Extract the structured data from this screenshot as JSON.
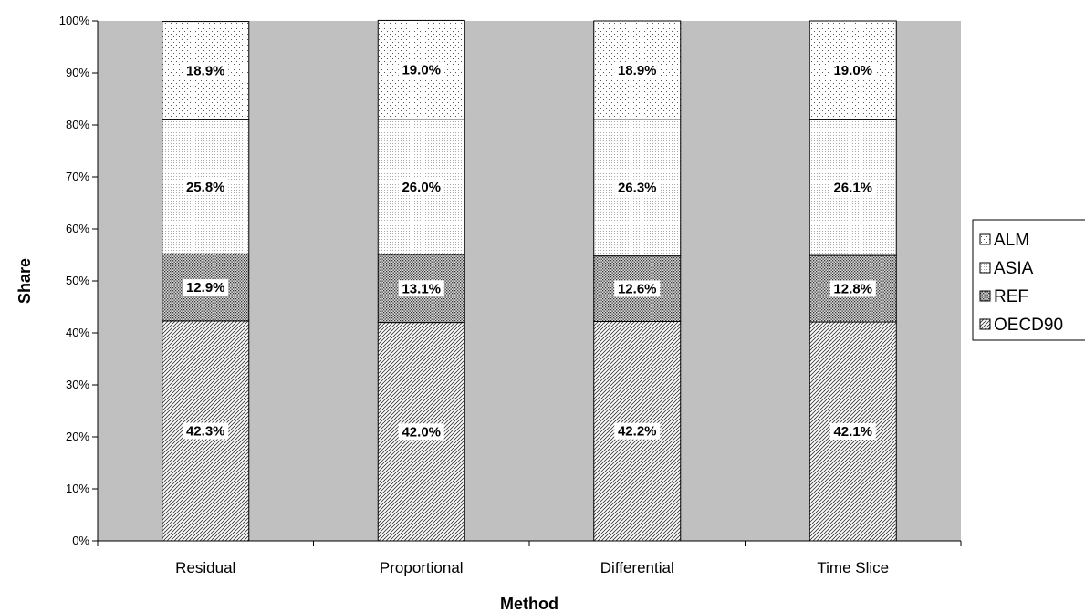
{
  "chart_data": {
    "type": "bar",
    "stacked": true,
    "percent_stacked": true,
    "categories": [
      "Residual",
      "Proportional",
      "Differential",
      "Time Slice"
    ],
    "series": [
      {
        "name": "OECD90",
        "values": [
          42.3,
          42.0,
          42.2,
          42.1
        ],
        "labels": [
          "42.3%",
          "42.0%",
          "42.2%",
          "42.1%"
        ],
        "pattern": "diagonal-hatch"
      },
      {
        "name": "REF",
        "values": [
          12.9,
          13.1,
          12.6,
          12.8
        ],
        "labels": [
          "12.9%",
          "13.1%",
          "12.6%",
          "12.8%"
        ],
        "pattern": "dense-grid"
      },
      {
        "name": "ASIA",
        "values": [
          25.8,
          26.0,
          26.3,
          26.1
        ],
        "labels": [
          "25.8%",
          "26.0%",
          "26.3%",
          "26.1%"
        ],
        "pattern": "fine-dots"
      },
      {
        "name": "ALM",
        "values": [
          18.9,
          19.0,
          18.9,
          19.0
        ],
        "labels": [
          "18.9%",
          "19.0%",
          "18.9%",
          "19.0%"
        ],
        "pattern": "sparse-dots"
      }
    ],
    "title": "",
    "xlabel": "Method",
    "ylabel": "Share",
    "ylim": [
      0,
      100
    ],
    "yticks": [
      "0%",
      "10%",
      "20%",
      "30%",
      "40%",
      "50%",
      "60%",
      "70%",
      "80%",
      "90%",
      "100%"
    ],
    "grid": false,
    "legend_position": "right",
    "legend_order": [
      "ALM",
      "ASIA",
      "REF",
      "OECD90"
    ],
    "colors": {
      "plot_background": "#c0c0c0",
      "bar_fill": "#ffffff",
      "pattern": "#000000"
    }
  }
}
